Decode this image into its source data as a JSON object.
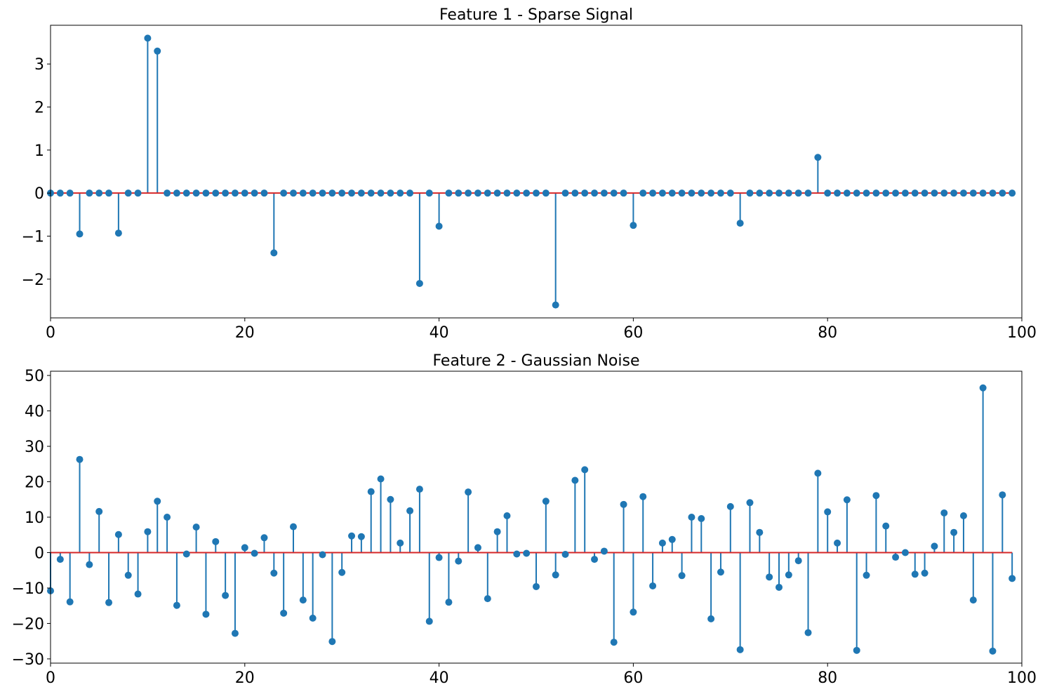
{
  "colors": {
    "stem": "#1f77b4",
    "baseline": "#d62728",
    "axes": "#000000"
  },
  "chart_data": [
    {
      "type": "stem",
      "title": "Feature 1 - Sparse Signal",
      "xlim": [
        0,
        100
      ],
      "ylim": [
        -2.9,
        3.9
      ],
      "xticks": [
        0,
        20,
        40,
        60,
        80,
        100
      ],
      "yticks": [
        -2,
        -1,
        0,
        1,
        2,
        3
      ],
      "xtick_labels": [
        "0",
        "20",
        "40",
        "60",
        "80",
        "100"
      ],
      "ytick_labels": [
        "−2",
        "−1",
        "0",
        "1",
        "2",
        "3"
      ],
      "baseline": 0,
      "x_start": 0,
      "values": [
        0,
        0,
        0,
        -0.95,
        0,
        0,
        0,
        -0.93,
        0,
        0,
        3.6,
        3.3,
        0,
        0,
        0,
        0,
        0,
        0,
        0,
        0,
        0,
        0,
        0,
        -1.39,
        0,
        0,
        0,
        0,
        0,
        0,
        0,
        0,
        0,
        0,
        0,
        0,
        0,
        0,
        -2.1,
        0,
        -0.77,
        0,
        0,
        0,
        0,
        0,
        0,
        0,
        0,
        0,
        0,
        0,
        -2.6,
        0,
        0,
        0,
        0,
        0,
        0,
        0,
        -0.75,
        0,
        0,
        0,
        0,
        0,
        0,
        0,
        0,
        0,
        0,
        -0.7,
        0,
        0,
        0,
        0,
        0,
        0,
        0,
        0.83,
        0,
        0,
        0,
        0,
        0,
        0,
        0,
        0,
        0,
        0,
        0,
        0,
        0,
        0,
        0,
        0,
        0,
        0,
        0,
        0
      ]
    },
    {
      "type": "stem",
      "title": "Feature 2 - Gaussian Noise",
      "xlim": [
        0,
        100
      ],
      "ylim": [
        -31.2,
        51.2
      ],
      "xticks": [
        0,
        20,
        40,
        60,
        80,
        100
      ],
      "yticks": [
        -30,
        -20,
        -10,
        0,
        10,
        20,
        30,
        40,
        50
      ],
      "xtick_labels": [
        "0",
        "20",
        "40",
        "60",
        "80",
        "100"
      ],
      "ytick_labels": [
        "−30",
        "−20",
        "−10",
        "0",
        "10",
        "20",
        "30",
        "40",
        "50"
      ],
      "baseline": 0,
      "x_start": 0,
      "values": [
        -10.8,
        -1.9,
        -13.9,
        26.3,
        -3.4,
        11.6,
        -14.1,
        5.1,
        -6.4,
        -11.7,
        5.9,
        14.5,
        10.0,
        -14.9,
        -0.4,
        7.2,
        -17.4,
        3.1,
        -12.1,
        -22.8,
        1.4,
        -0.2,
        4.2,
        -5.8,
        -17.1,
        7.3,
        -13.4,
        -18.5,
        -0.6,
        -25.1,
        -5.6,
        4.7,
        4.5,
        17.2,
        20.8,
        15.0,
        2.7,
        11.8,
        17.9,
        -19.4,
        -1.4,
        -14.0,
        -2.4,
        17.1,
        1.4,
        -13.0,
        5.9,
        10.4,
        -0.4,
        -0.2,
        -9.6,
        14.5,
        -6.3,
        -0.5,
        20.4,
        23.4,
        -1.9,
        0.4,
        -25.3,
        13.6,
        -16.8,
        15.8,
        -9.4,
        2.7,
        3.7,
        -6.5,
        10.0,
        9.6,
        -18.7,
        -5.5,
        13.0,
        -27.4,
        14.1,
        5.7,
        -6.9,
        -9.8,
        -6.3,
        -2.3,
        -22.6,
        22.4,
        11.5,
        2.7,
        14.9,
        -27.6,
        -6.4,
        16.1,
        7.5,
        -1.3,
        0,
        -6.1,
        -5.8,
        1.8,
        11.2,
        5.7,
        10.4,
        -13.4,
        46.5,
        -27.8,
        16.3,
        -7.3
      ]
    }
  ]
}
